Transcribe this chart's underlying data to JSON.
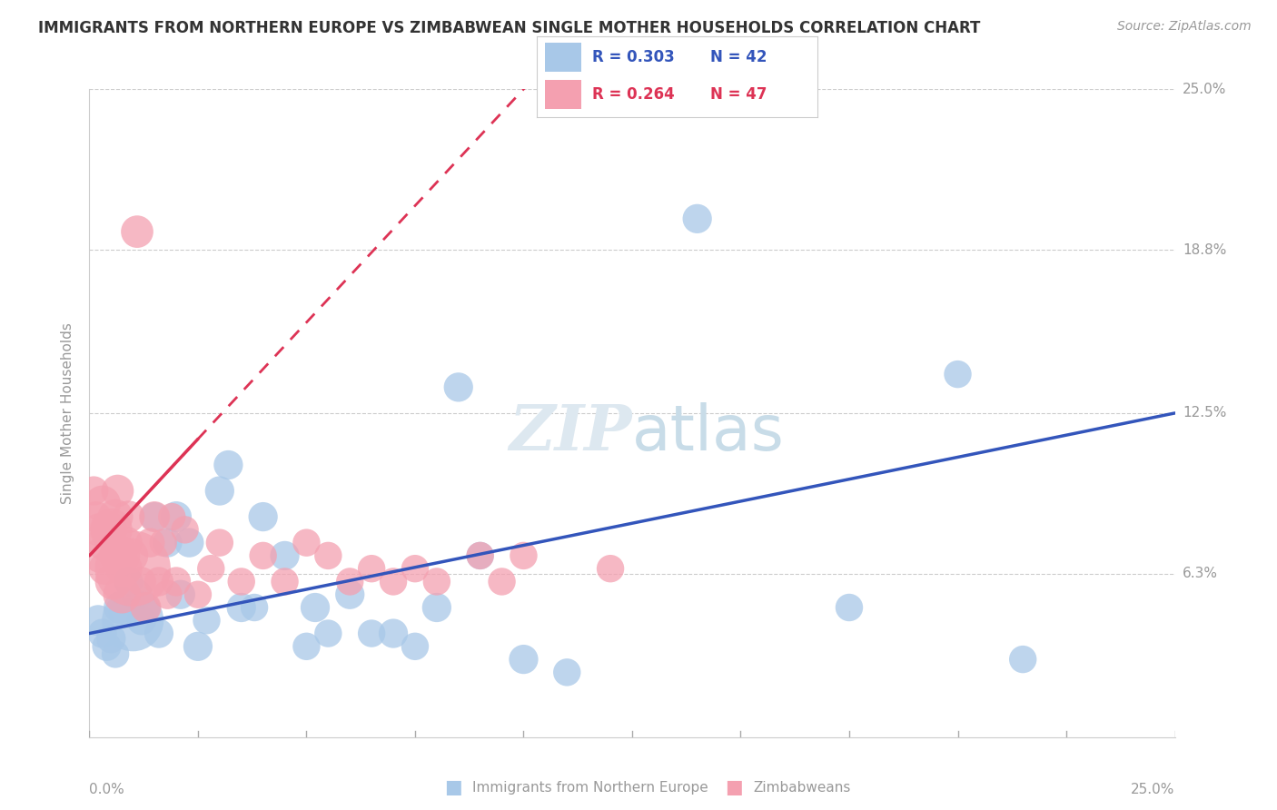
{
  "title": "IMMIGRANTS FROM NORTHERN EUROPE VS ZIMBABWEAN SINGLE MOTHER HOUSEHOLDS CORRELATION CHART",
  "source": "Source: ZipAtlas.com",
  "ylabel": "Single Mother Households",
  "ytick_values": [
    0.0,
    6.3,
    12.5,
    18.8,
    25.0
  ],
  "xmin": 0.0,
  "xmax": 25.0,
  "ymin": 0.0,
  "ymax": 25.0,
  "blue_label": "Immigrants from Northern Europe",
  "pink_label": "Zimbabweans",
  "blue_R": "R = 0.303",
  "blue_N": "N = 42",
  "pink_R": "R = 0.264",
  "pink_N": "N = 47",
  "blue_fill": "#a8c8e8",
  "pink_fill": "#f4a0b0",
  "blue_line": "#3355bb",
  "pink_line": "#dd3355",
  "blue_scatter_x": [
    0.2,
    0.3,
    0.4,
    0.5,
    0.6,
    0.7,
    0.8,
    0.9,
    1.0,
    1.1,
    1.2,
    1.3,
    1.5,
    1.6,
    1.8,
    2.0,
    2.1,
    2.3,
    2.5,
    2.7,
    3.0,
    3.2,
    3.5,
    3.8,
    4.0,
    4.5,
    5.0,
    5.2,
    5.5,
    6.0,
    6.5,
    7.0,
    7.5,
    8.0,
    8.5,
    9.0,
    10.0,
    11.0,
    14.0,
    17.5,
    20.0,
    21.5
  ],
  "blue_scatter_y": [
    4.5,
    4.0,
    3.5,
    3.8,
    3.2,
    5.0,
    4.8,
    6.0,
    4.5,
    5.5,
    4.5,
    5.0,
    8.5,
    4.0,
    7.5,
    8.5,
    5.5,
    7.5,
    3.5,
    4.5,
    9.5,
    10.5,
    5.0,
    5.0,
    8.5,
    7.0,
    3.5,
    5.0,
    4.0,
    5.5,
    4.0,
    4.0,
    3.5,
    5.0,
    13.5,
    7.0,
    3.0,
    2.5,
    20.0,
    5.0,
    14.0,
    3.0
  ],
  "blue_scatter_s": [
    20,
    18,
    18,
    18,
    16,
    22,
    20,
    18,
    80,
    20,
    18,
    18,
    18,
    18,
    18,
    20,
    18,
    18,
    18,
    16,
    18,
    18,
    18,
    16,
    18,
    18,
    16,
    18,
    16,
    18,
    16,
    18,
    16,
    18,
    18,
    16,
    18,
    16,
    18,
    16,
    16,
    16
  ],
  "pink_scatter_x": [
    0.1,
    0.15,
    0.2,
    0.25,
    0.3,
    0.35,
    0.4,
    0.45,
    0.5,
    0.55,
    0.6,
    0.65,
    0.7,
    0.75,
    0.8,
    0.85,
    0.9,
    0.95,
    1.0,
    1.1,
    1.2,
    1.3,
    1.4,
    1.5,
    1.6,
    1.7,
    1.8,
    1.9,
    2.0,
    2.2,
    2.5,
    2.8,
    3.0,
    3.5,
    4.0,
    4.5,
    5.0,
    5.5,
    6.0,
    6.5,
    7.0,
    7.5,
    8.0,
    9.0,
    9.5,
    10.0,
    12.0
  ],
  "pink_scatter_y": [
    9.5,
    8.5,
    8.0,
    7.0,
    9.0,
    6.5,
    7.5,
    8.0,
    8.0,
    6.0,
    8.5,
    9.5,
    7.0,
    5.5,
    6.5,
    7.5,
    8.5,
    7.0,
    6.5,
    19.5,
    6.0,
    5.0,
    7.5,
    8.5,
    6.0,
    7.5,
    5.5,
    8.5,
    6.0,
    8.0,
    5.5,
    6.5,
    7.5,
    6.0,
    7.0,
    6.0,
    7.5,
    7.0,
    6.0,
    6.5,
    6.0,
    6.5,
    6.0,
    7.0,
    6.0,
    7.0,
    6.5
  ],
  "pink_scatter_s": [
    18,
    20,
    22,
    25,
    28,
    22,
    32,
    28,
    38,
    28,
    26,
    22,
    34,
    30,
    28,
    22,
    22,
    26,
    120,
    22,
    18,
    20,
    18,
    20,
    18,
    16,
    18,
    16,
    18,
    16,
    16,
    16,
    16,
    16,
    16,
    16,
    16,
    16,
    16,
    16,
    16,
    16,
    16,
    16,
    16,
    16,
    16
  ],
  "background_color": "#ffffff",
  "grid_color": "#cccccc",
  "title_color": "#333333",
  "label_color": "#999999"
}
